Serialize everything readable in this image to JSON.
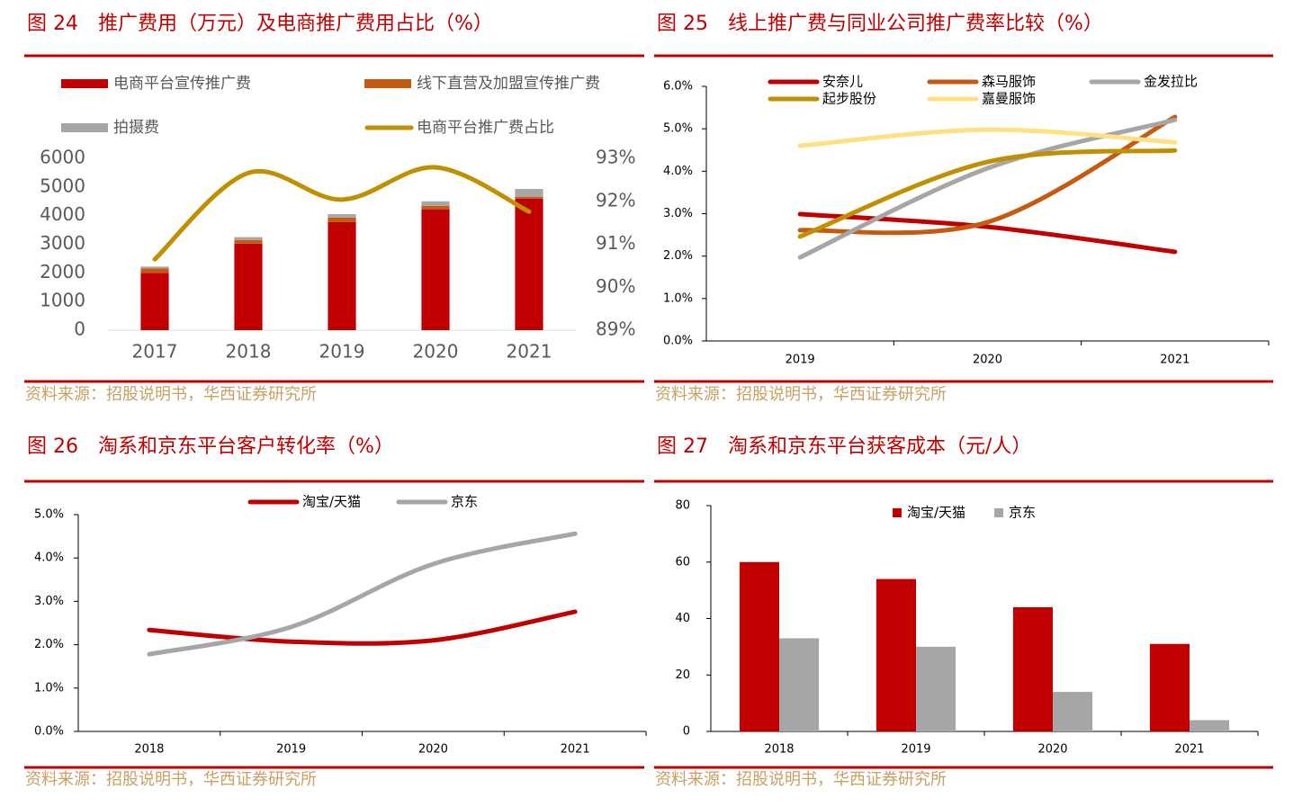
{
  "chart_data": [
    {
      "type": "bar",
      "title": "图 24　推广费用（万元）及电商推广费用占比（%）",
      "source": "资料来源：招股说明书，华西证券研究所",
      "stacked": true,
      "categories": [
        "2017",
        "2018",
        "2019",
        "2020",
        "2021"
      ],
      "series": [
        {
          "name": "电商平台宣传推广费",
          "color": "#c00000",
          "values": [
            2000,
            3020,
            3770,
            4210,
            4590
          ]
        },
        {
          "name": "线下直营及加盟宣传推广费",
          "color": "#c55a11",
          "values": [
            160,
            130,
            160,
            130,
            60
          ]
        },
        {
          "name": "拍摄费",
          "color": "#a6a6a6",
          "values": [
            60,
            100,
            120,
            160,
            280
          ]
        },
        {
          "name": "电商平台推广费占比",
          "color": "#bf9000",
          "type": "line",
          "axis": "y2",
          "values": [
            90.65,
            92.66,
            92.04,
            92.79,
            91.76
          ]
        }
      ],
      "ylim": [
        0,
        6000
      ],
      "yticks": [
        0,
        1000,
        2000,
        3000,
        4000,
        5000,
        6000
      ],
      "y2lim": [
        89,
        93
      ],
      "y2ticks": [
        {
          "value": 89,
          "label": "89%"
        },
        {
          "value": 90,
          "label": "90%"
        },
        {
          "value": 91,
          "label": "91%"
        },
        {
          "value": 92,
          "label": "92%"
        },
        {
          "value": 93,
          "label": "93%"
        }
      ],
      "grid": false
    },
    {
      "type": "line",
      "title": "图 25　线上推广费与同业公司推广费率比较（%）",
      "source": "资料来源：招股说明书，华西证券研究所",
      "categories": [
        "2019",
        "2020",
        "2021"
      ],
      "series": [
        {
          "name": "安奈儿",
          "color": "#c00000",
          "values": [
            2.99,
            2.69,
            2.1
          ]
        },
        {
          "name": "森马服饰",
          "color": "#c55a11",
          "values": [
            2.61,
            2.8,
            5.28
          ]
        },
        {
          "name": "金发拉比",
          "color": "#a6a6a6",
          "values": [
            1.97,
            4.07,
            5.21
          ]
        },
        {
          "name": "起步股份",
          "color": "#bf9000",
          "values": [
            2.46,
            4.22,
            4.49
          ]
        },
        {
          "name": "嘉曼服饰",
          "color": "#ffe083",
          "values": [
            4.6,
            4.98,
            4.68
          ]
        }
      ],
      "ylim": [
        0,
        6
      ],
      "yticks": [
        {
          "value": 0,
          "label": "0.0%"
        },
        {
          "value": 1,
          "label": "1.0%"
        },
        {
          "value": 2,
          "label": "2.0%"
        },
        {
          "value": 3,
          "label": "3.0%"
        },
        {
          "value": 4,
          "label": "4.0%"
        },
        {
          "value": 5,
          "label": "5.0%"
        },
        {
          "value": 6,
          "label": "6.0%"
        }
      ],
      "grid": false
    },
    {
      "type": "line",
      "title": "图 26　淘系和京东平台客户转化率（%）",
      "source": "资料来源：招股说明书，华西证券研究所",
      "categories": [
        "2018",
        "2019",
        "2020",
        "2021"
      ],
      "series": [
        {
          "name": "淘宝/天猫",
          "color": "#c00000",
          "values": [
            2.34,
            2.07,
            2.1,
            2.76
          ]
        },
        {
          "name": "京东",
          "color": "#a6a6a6",
          "values": [
            1.78,
            2.41,
            3.86,
            4.56
          ]
        }
      ],
      "ylim": [
        0,
        5
      ],
      "yticks": [
        {
          "value": 0,
          "label": "0.0%"
        },
        {
          "value": 1,
          "label": "1.0%"
        },
        {
          "value": 2,
          "label": "2.0%"
        },
        {
          "value": 3,
          "label": "3.0%"
        },
        {
          "value": 4,
          "label": "4.0%"
        },
        {
          "value": 5,
          "label": "5.0%"
        }
      ],
      "grid": false
    },
    {
      "type": "bar",
      "title": "图 27　淘系和京东平台获客成本（元/人）",
      "source": "资料来源：招股说明书，华西证券研究所",
      "stacked": false,
      "categories": [
        "2018",
        "2019",
        "2020",
        "2021"
      ],
      "series": [
        {
          "name": "淘宝/天猫",
          "color": "#c00000",
          "values": [
            60,
            54,
            44,
            31
          ]
        },
        {
          "name": "京东",
          "color": "#a6a6a6",
          "values": [
            33,
            30,
            14,
            4
          ]
        }
      ],
      "ylim": [
        0,
        80
      ],
      "yticks": [
        0,
        20,
        40,
        60,
        80
      ],
      "grid": false
    }
  ]
}
